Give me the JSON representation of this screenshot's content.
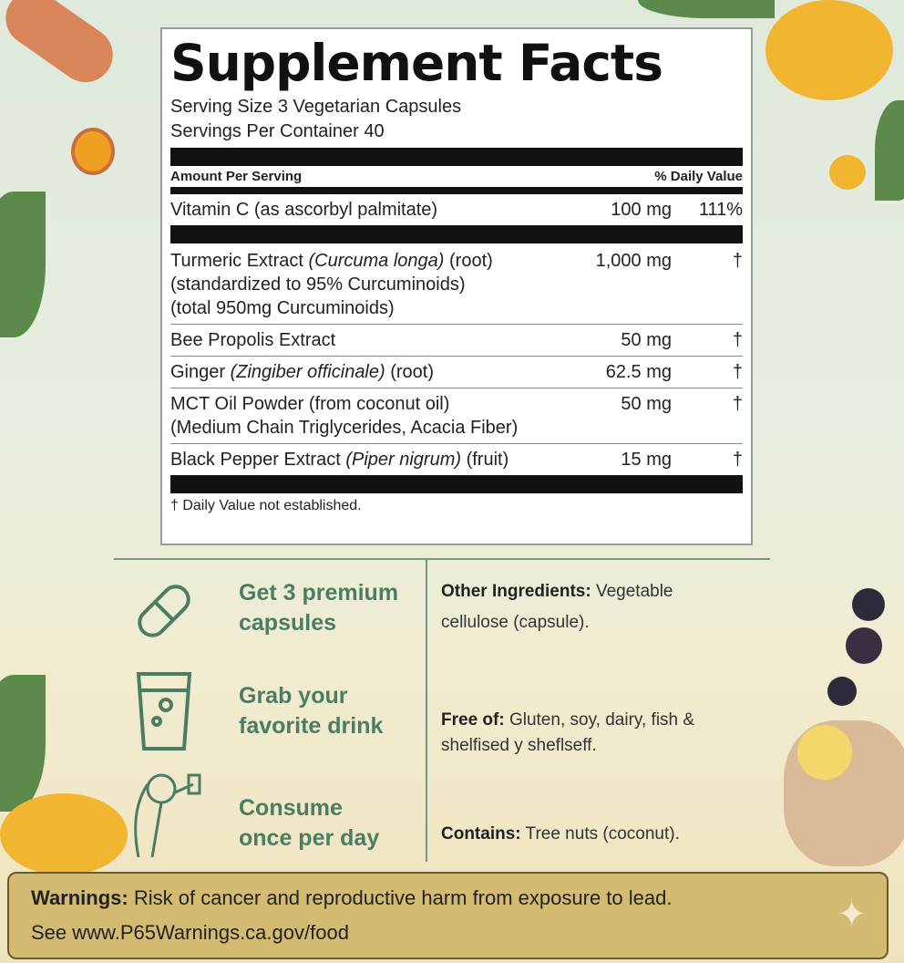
{
  "label": {
    "title": "Supplement Facts",
    "serving_size": "Serving Size 3 Vegetarian Capsules",
    "servings_per_container": "Servings Per Container 40",
    "amount_header": "Amount Per Serving",
    "dv_header": "% Daily Value",
    "vitamin": {
      "name": "Vitamin C (as ascorbyl palmitate)",
      "amount": "100 mg",
      "dv": "111%"
    },
    "ingredients": [
      {
        "name": "Turmeric Extract ",
        "latin": "(Curcuma longa)",
        "suffix": " (root)",
        "line2": "(standardized to 95% Curcuminoids)",
        "line3": "(total 950mg Curcuminoids)",
        "amount": "1,000 mg",
        "dv": "†"
      },
      {
        "name": "Bee Propolis Extract",
        "amount": "50 mg",
        "dv": "†"
      },
      {
        "name": "Ginger ",
        "latin": "(Zingiber officinale)",
        "suffix": " (root)",
        "amount": "62.5 mg",
        "dv": "†"
      },
      {
        "name": "MCT Oil Powder (from coconut oil)",
        "line2": "(Medium Chain Triglycerides, Acacia Fiber)",
        "amount": "50 mg",
        "dv": "†"
      },
      {
        "name": "Black Pepper Extract ",
        "latin": "(Piper nigrum)",
        "suffix": " (fruit)",
        "amount": "15 mg",
        "dv": "†"
      }
    ],
    "footnote": "† Daily Value not established."
  },
  "steps": [
    {
      "line1": "Get 3 premium",
      "line2": "capsules",
      "icon": "capsule-icon"
    },
    {
      "line1": "Grab your",
      "line2": "favorite drink",
      "icon": "glass-icon"
    },
    {
      "line1": "Consume",
      "line2": "once per day",
      "icon": "person-drinking-icon"
    }
  ],
  "info": {
    "other_label": "Other Ingredients:",
    "other_text": " Vegetable",
    "other_text2": "cellulose (capsule).",
    "free_label": "Free of:",
    "free_text": " Gluten, soy, dairy, fish &",
    "free_text2": "shelfised y sheflseff.",
    "contains_label": "Contains:",
    "contains_text": " Tree nuts (coconut)."
  },
  "warning": {
    "label": "Warnings:",
    "text": " Risk of cancer and reproductive harm from exposure to lead.",
    "line2": "See www.P65Warnings.ca.gov/food"
  },
  "colors": {
    "accent": "#4b7d63",
    "warning_bg": "#d3bb72"
  }
}
